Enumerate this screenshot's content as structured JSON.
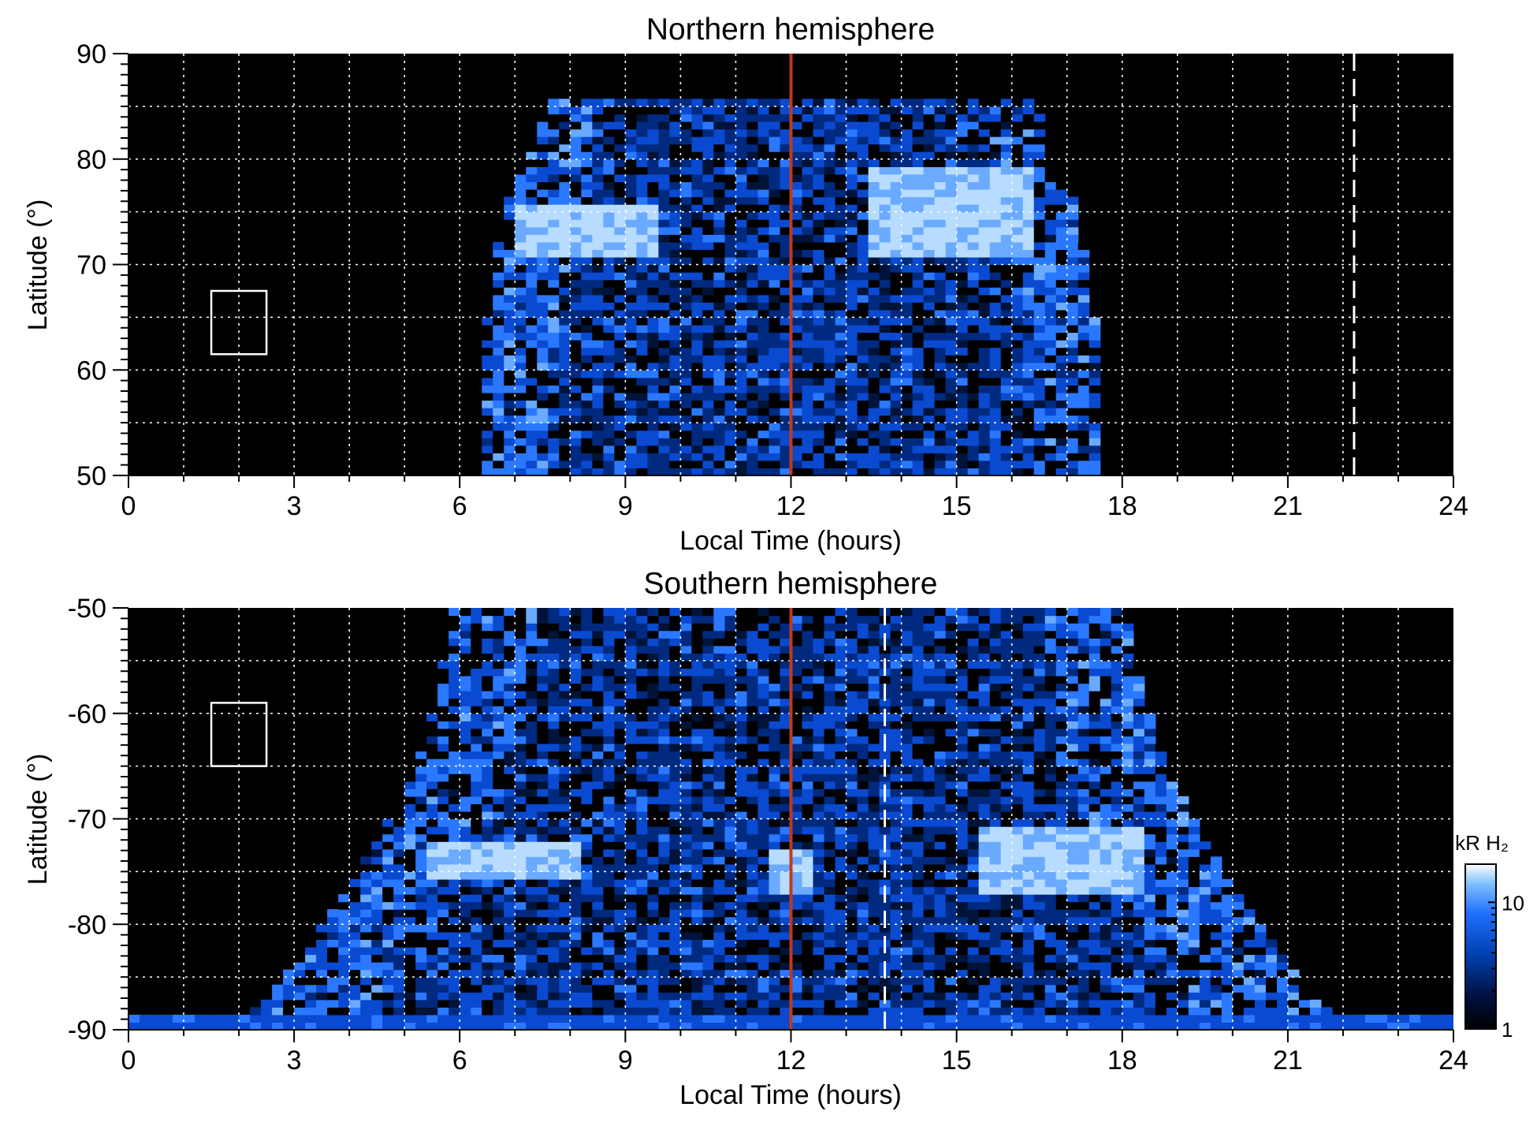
{
  "chart_data": [
    {
      "type": "heatmap",
      "title": "Northern hemisphere",
      "xlabel": "Local Time (hours)",
      "ylabel": "Latitude (°)",
      "xlim": [
        0,
        24
      ],
      "ylim": [
        50,
        90
      ],
      "xticks": [
        "0",
        "3",
        "6",
        "9",
        "12",
        "15",
        "18",
        "21",
        "24"
      ],
      "yticks": [
        "50",
        "60",
        "70",
        "80",
        "90"
      ],
      "grid": true,
      "noon_line_hours": 12,
      "dashed_line_hours": 22.2,
      "box": {
        "x": [
          1.5,
          2.5
        ],
        "y": [
          61.5,
          67.5
        ]
      },
      "lit_region": {
        "lt_edge_at_lat50": [
          6.4,
          17.6
        ],
        "top_lat": 85.5
      },
      "auroral_arcs": [
        {
          "lt": [
            7.0,
            9.5
          ],
          "lat": [
            71,
            76
          ],
          "brightness": 20
        },
        {
          "lt": [
            13.5,
            16.3
          ],
          "lat": [
            71,
            79
          ],
          "brightness": 25
        }
      ]
    },
    {
      "type": "heatmap",
      "title": "Southern hemisphere",
      "xlabel": "Local Time (hours)",
      "ylabel": "Latitude (°)",
      "xlim": [
        0,
        24
      ],
      "ylim": [
        -90,
        -50
      ],
      "xticks": [
        "0",
        "3",
        "6",
        "9",
        "12",
        "15",
        "18",
        "21",
        "24"
      ],
      "yticks": [
        "-90",
        "-80",
        "-70",
        "-60",
        "-50"
      ],
      "grid": true,
      "noon_line_hours": 12,
      "dashed_line_hours": 13.7,
      "box": {
        "x": [
          1.5,
          2.5
        ],
        "y": [
          -65,
          -59
        ]
      },
      "lit_region": {
        "lt_edge_at_lat_minus50": [
          5.9,
          18.2
        ],
        "bottom_band_lat": -89
      },
      "auroral_arcs": [
        {
          "lt": [
            5.5,
            8.2
          ],
          "lat": [
            -76,
            -72
          ],
          "brightness": 25
        },
        {
          "lt": [
            11.6,
            12.4
          ],
          "lat": [
            -77,
            -73
          ],
          "brightness": 18
        },
        {
          "lt": [
            15.5,
            18.3
          ],
          "lat": [
            -77,
            -71
          ],
          "brightness": 15
        }
      ],
      "colorbar": {
        "label": "kR H₂",
        "scale": "log",
        "range": [
          1,
          20
        ],
        "ticks": [
          "1",
          "10"
        ],
        "colormap": [
          "#000000",
          "#001040",
          "#0040b0",
          "#1f6fff",
          "#7fbfff",
          "#ffffff"
        ]
      }
    }
  ],
  "colors": {
    "noon_line": "#c0391b",
    "grid": "#ffffff",
    "background": "#000000"
  }
}
